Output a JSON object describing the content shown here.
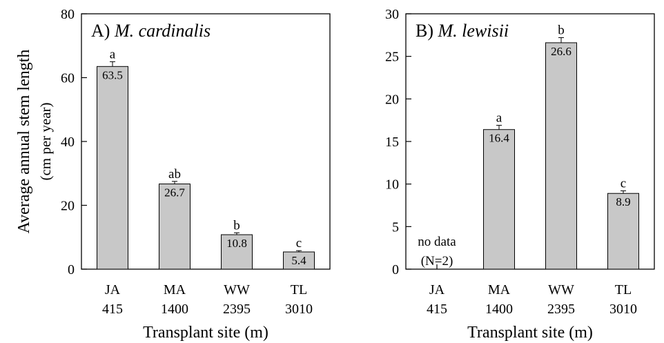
{
  "chart_data": [
    {
      "type": "bar",
      "title_prefix": "A)",
      "title_species": "M. cardinalis",
      "ylabel": "Average annual stem length",
      "ylabel_units": "(cm per year)",
      "xlabel": "Transplant site (m)",
      "ylim": [
        0,
        80
      ],
      "yticks": [
        0,
        20,
        40,
        60,
        80
      ],
      "categories": [
        "JA",
        "MA",
        "WW",
        "TL"
      ],
      "elevations": [
        "415",
        "1400",
        "2395",
        "3010"
      ],
      "values": [
        63.5,
        26.7,
        10.8,
        5.4
      ],
      "value_labels": [
        "63.5",
        "26.7",
        "10.8",
        "5.4"
      ],
      "error": [
        1.5,
        0.8,
        0.6,
        0.4
      ],
      "significance": [
        "a",
        "ab",
        "b",
        "c"
      ],
      "bar_color": "#c8c8c8",
      "no_data": []
    },
    {
      "type": "bar",
      "title_prefix": "B)",
      "title_species": "M. lewisii",
      "xlabel": "Transplant site (m)",
      "ylim": [
        0,
        30
      ],
      "yticks": [
        0,
        5,
        10,
        15,
        20,
        25,
        30
      ],
      "categories": [
        "JA",
        "MA",
        "WW",
        "TL"
      ],
      "elevations": [
        "415",
        "1400",
        "2395",
        "3010"
      ],
      "values": [
        null,
        16.4,
        26.6,
        8.9
      ],
      "value_labels": [
        "",
        "16.4",
        "26.6",
        "8.9"
      ],
      "error": [
        0,
        0.5,
        0.6,
        0.3
      ],
      "significance": [
        "",
        "a",
        "b",
        "c"
      ],
      "bar_color": "#c8c8c8",
      "no_data": [
        {
          "index": 0,
          "line1": "no data",
          "line2": "(N=2)"
        }
      ]
    }
  ]
}
